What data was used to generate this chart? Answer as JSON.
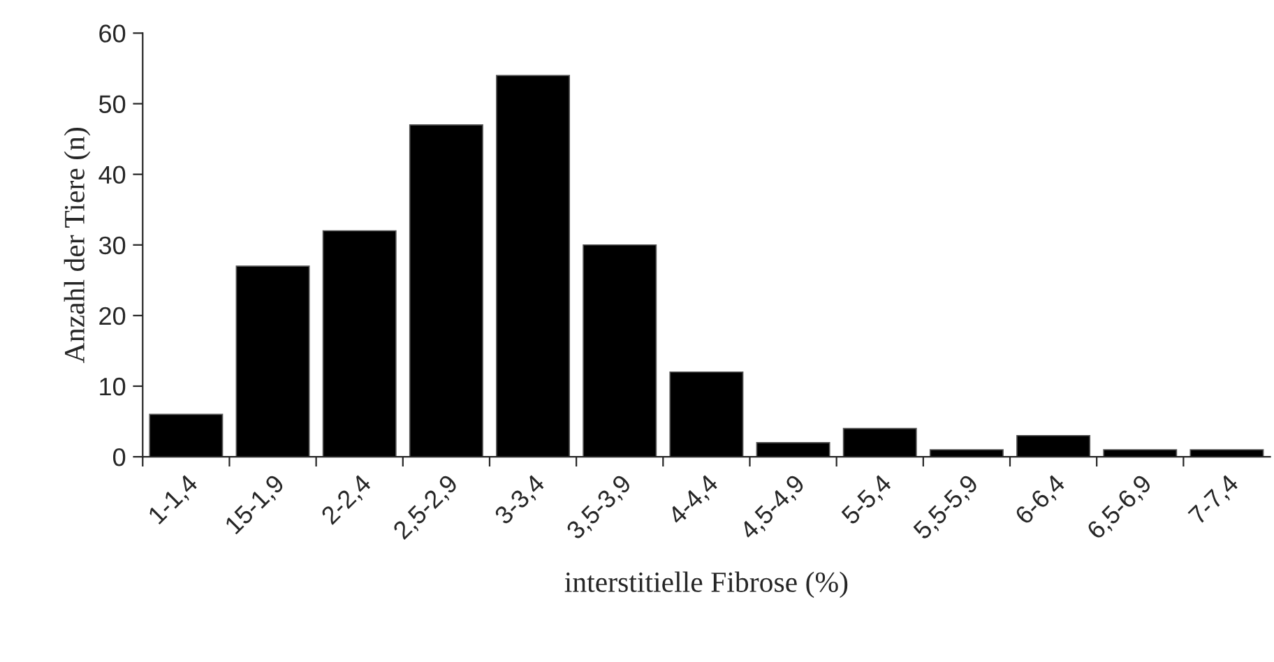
{
  "chart_data": {
    "type": "bar",
    "xlabel": "interstitielle Fibrose (%)",
    "ylabel": "Anzahl der Tiere (n)",
    "categories": [
      "1-1,4",
      "15-1,9",
      "2-2,4",
      "2,5-2,9",
      "3-3,4",
      "3,5-3,9",
      "4-4,4",
      "4,5-4,9",
      "5-5,4",
      "5,5-5,9",
      "6-6,4",
      "6,5-6,9",
      "7-7,4"
    ],
    "values": [
      6,
      27,
      32,
      47,
      54,
      30,
      12,
      2,
      4,
      1,
      3,
      1,
      1
    ],
    "color": "#000000",
    "ylim": [
      0,
      60
    ],
    "yticks": [
      0,
      10,
      20,
      30,
      40,
      50,
      60
    ],
    "grid": false,
    "legend": false
  }
}
